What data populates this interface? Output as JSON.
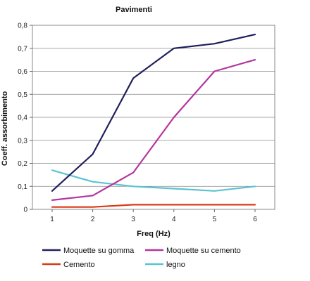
{
  "chart_data": {
    "type": "line",
    "title": "Pavimenti",
    "xlabel": "Freq (Hz)",
    "ylabel": "Coeff. assorbimento",
    "x": [
      1,
      2,
      3,
      4,
      5,
      6
    ],
    "xlim": [
      1,
      6
    ],
    "ylim": [
      0,
      0.8
    ],
    "yticks": [
      "0",
      "0,1",
      "0,2",
      "0,3",
      "0,4",
      "0,5",
      "0,6",
      "0,7",
      "0,8"
    ],
    "xticks": [
      "1",
      "2",
      "3",
      "4",
      "5",
      "6"
    ],
    "grid": true,
    "legend_position": "bottom",
    "series": [
      {
        "name": "Moquette su gomma",
        "color": "#1f1f5e",
        "values": [
          0.08,
          0.24,
          0.57,
          0.7,
          0.72,
          0.76
        ]
      },
      {
        "name": "Moquette su cemento",
        "color": "#b4359e",
        "values": [
          0.04,
          0.06,
          0.16,
          0.4,
          0.6,
          0.65
        ]
      },
      {
        "name": "Cemento",
        "color": "#d93a16",
        "values": [
          0.01,
          0.01,
          0.02,
          0.02,
          0.02,
          0.02
        ]
      },
      {
        "name": "legno",
        "color": "#5bc3d3",
        "values": [
          0.17,
          0.12,
          0.1,
          0.09,
          0.08,
          0.1
        ]
      }
    ]
  }
}
